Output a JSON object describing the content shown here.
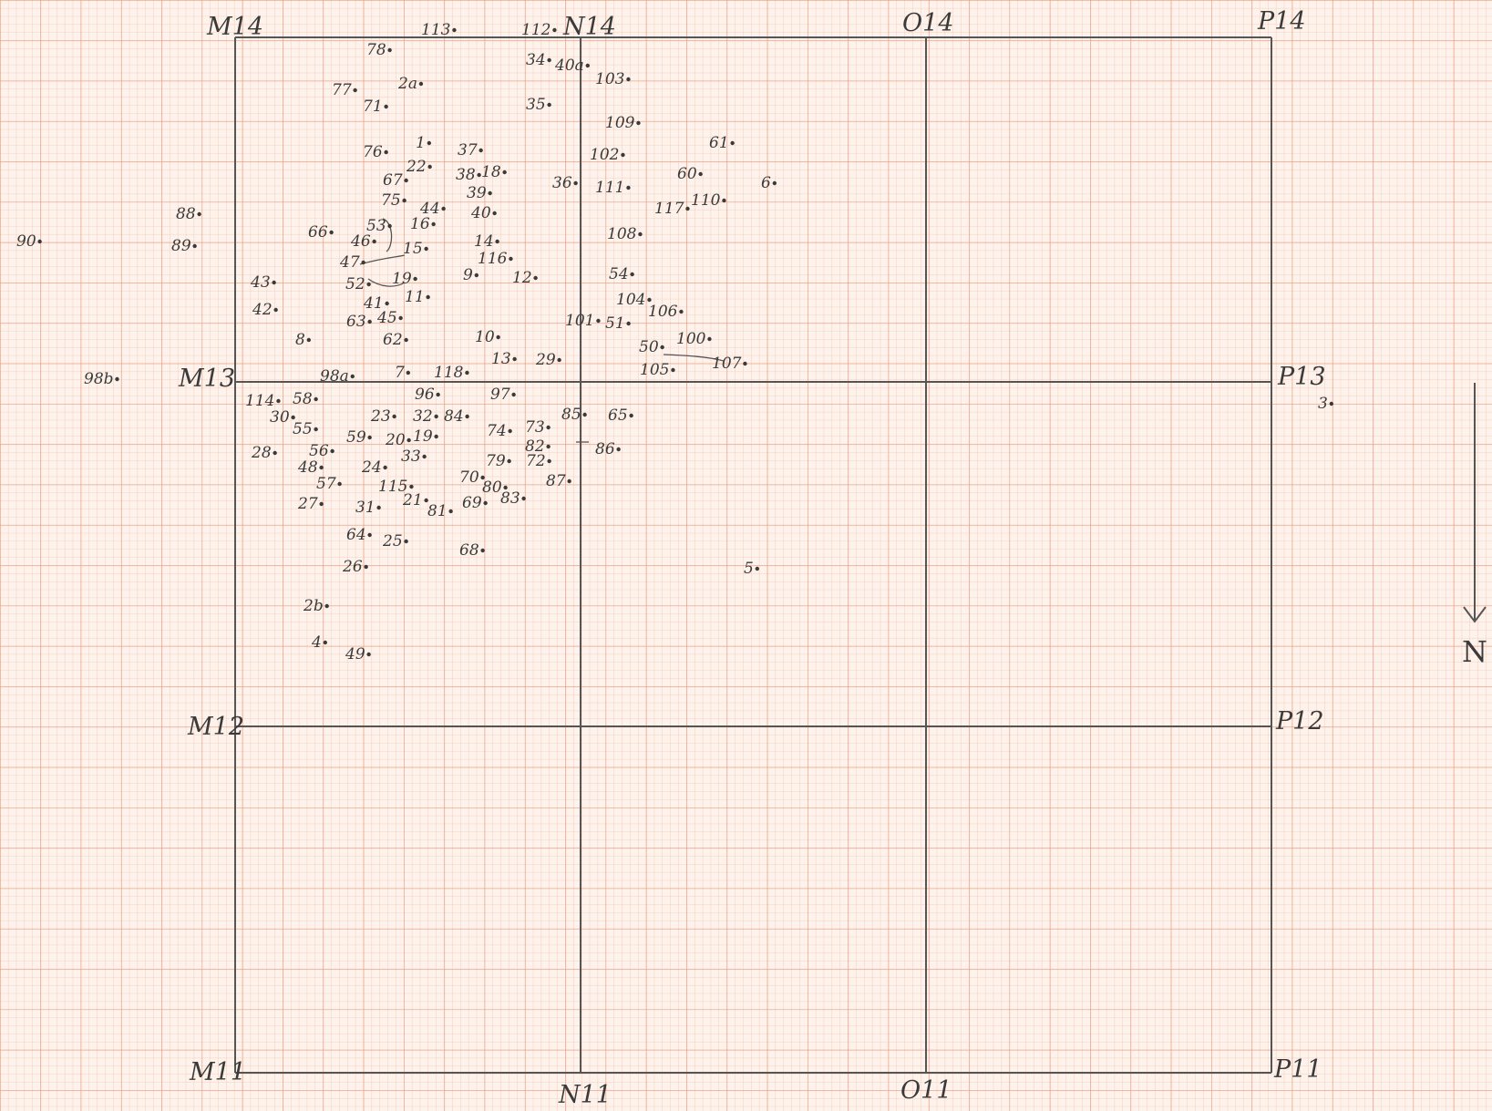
{
  "sheet": {
    "paper_color": "#fdf3ec",
    "grid_minor_color": "#f6c3ad",
    "grid_major_color": "#ec9a7c",
    "ink_color": "#3a3a3a"
  },
  "grid_labels": {
    "m14": "M14",
    "n14": "N14",
    "o14": "O14",
    "p14": "P14",
    "m13": "M13",
    "p13": "P13",
    "m12": "M12",
    "p12": "P12",
    "m11": "M11",
    "n11": "N11",
    "o11": "O11",
    "p11": "P11"
  },
  "north_arrow": {
    "label": "N"
  },
  "finds": [
    {
      "label": "113"
    },
    {
      "label": "112"
    },
    {
      "label": "78"
    },
    {
      "label": "34"
    },
    {
      "label": "40a"
    },
    {
      "label": "103"
    },
    {
      "label": "77"
    },
    {
      "label": "2a"
    },
    {
      "label": "71"
    },
    {
      "label": "35"
    },
    {
      "label": "109"
    },
    {
      "label": "1"
    },
    {
      "label": "37"
    },
    {
      "label": "61"
    },
    {
      "label": "76"
    },
    {
      "label": "102"
    },
    {
      "label": "22"
    },
    {
      "label": "38"
    },
    {
      "label": "18"
    },
    {
      "label": "60"
    },
    {
      "label": "6"
    },
    {
      "label": "67"
    },
    {
      "label": "36"
    },
    {
      "label": "111"
    },
    {
      "label": "39"
    },
    {
      "label": "75"
    },
    {
      "label": "117"
    },
    {
      "label": "110"
    },
    {
      "label": "88"
    },
    {
      "label": "44"
    },
    {
      "label": "40"
    },
    {
      "label": "16"
    },
    {
      "label": "53"
    },
    {
      "label": "66"
    },
    {
      "label": "108"
    },
    {
      "label": "90"
    },
    {
      "label": "89"
    },
    {
      "label": "14"
    },
    {
      "label": "46"
    },
    {
      "label": "15"
    },
    {
      "label": "116"
    },
    {
      "label": "47"
    },
    {
      "label": "9"
    },
    {
      "label": "12"
    },
    {
      "label": "54"
    },
    {
      "label": "43"
    },
    {
      "label": "52"
    },
    {
      "label": "19"
    },
    {
      "label": "11"
    },
    {
      "label": "104"
    },
    {
      "label": "42"
    },
    {
      "label": "41"
    },
    {
      "label": "106"
    },
    {
      "label": "63"
    },
    {
      "label": "45"
    },
    {
      "label": "101"
    },
    {
      "label": "51"
    },
    {
      "label": "62"
    },
    {
      "label": "100"
    },
    {
      "label": "8"
    },
    {
      "label": "10"
    },
    {
      "label": "50"
    },
    {
      "label": "13"
    },
    {
      "label": "29"
    },
    {
      "label": "107"
    },
    {
      "label": "105"
    },
    {
      "label": "98b"
    },
    {
      "label": "98a"
    },
    {
      "label": "7"
    },
    {
      "label": "118"
    },
    {
      "label": "114"
    },
    {
      "label": "58"
    },
    {
      "label": "96"
    },
    {
      "label": "97"
    },
    {
      "label": "3"
    },
    {
      "label": "30"
    },
    {
      "label": "85"
    },
    {
      "label": "65"
    },
    {
      "label": "23"
    },
    {
      "label": "32"
    },
    {
      "label": "84"
    },
    {
      "label": "55"
    },
    {
      "label": "73"
    },
    {
      "label": "74"
    },
    {
      "label": "59"
    },
    {
      "label": "20"
    },
    {
      "label": "19"
    },
    {
      "label": "86"
    },
    {
      "label": "82"
    },
    {
      "label": "28"
    },
    {
      "label": "56"
    },
    {
      "label": "33"
    },
    {
      "label": "79"
    },
    {
      "label": "72"
    },
    {
      "label": "48"
    },
    {
      "label": "24"
    },
    {
      "label": "87"
    },
    {
      "label": "57"
    },
    {
      "label": "115"
    },
    {
      "label": "70"
    },
    {
      "label": "80"
    },
    {
      "label": "21"
    },
    {
      "label": "27"
    },
    {
      "label": "31"
    },
    {
      "label": "81"
    },
    {
      "label": "69"
    },
    {
      "label": "83"
    },
    {
      "label": "64"
    },
    {
      "label": "25"
    },
    {
      "label": "68"
    },
    {
      "label": "5"
    },
    {
      "label": "26"
    },
    {
      "label": "2b"
    },
    {
      "label": "4"
    },
    {
      "label": "49"
    }
  ]
}
